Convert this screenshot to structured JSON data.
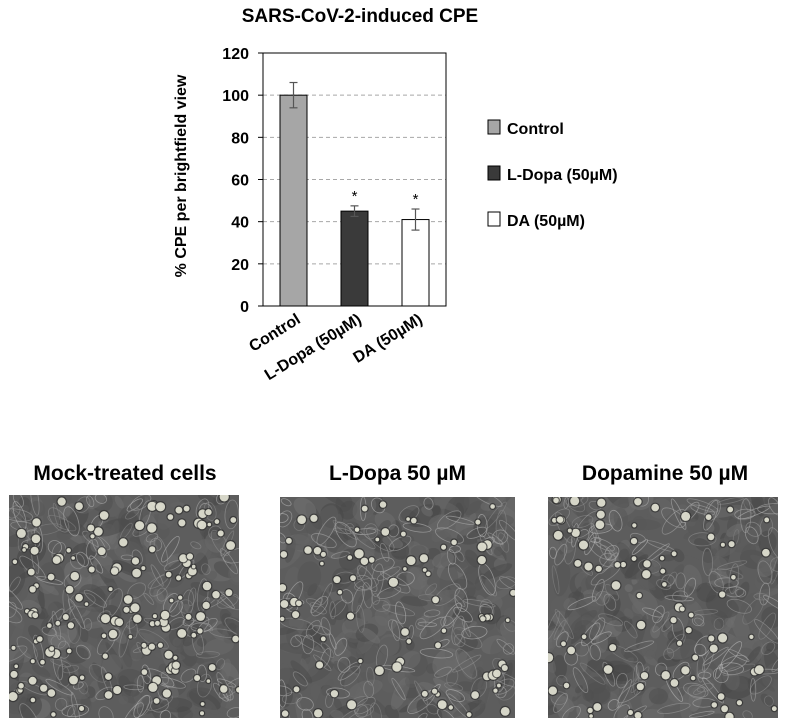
{
  "chart_data": {
    "type": "bar",
    "title": "SARS-CoV-2-induced CPE",
    "ylabel": "% CPE per brightfield view",
    "xlabel": "",
    "ylim": [
      0,
      120
    ],
    "yticks": [
      0,
      20,
      40,
      60,
      80,
      100,
      120
    ],
    "grid": true,
    "categories": [
      "Control",
      "L-Dopa (50µM)",
      "DA (50µM)"
    ],
    "values": [
      100,
      45,
      41
    ],
    "errors": [
      6,
      2.5,
      5
    ],
    "significance": [
      "",
      "*",
      "*"
    ],
    "colors": [
      "#a6a6a6",
      "#3a3a3a",
      "#ffffff"
    ],
    "legend": {
      "placement": "right",
      "entries": [
        "Control",
        "L-Dopa (50µM)",
        "DA (50µM)"
      ]
    }
  },
  "images": {
    "panels": [
      {
        "title": "Mock-treated cells"
      },
      {
        "title": "L-Dopa 50 µM"
      },
      {
        "title": "Dopamine 50 µM"
      }
    ]
  }
}
